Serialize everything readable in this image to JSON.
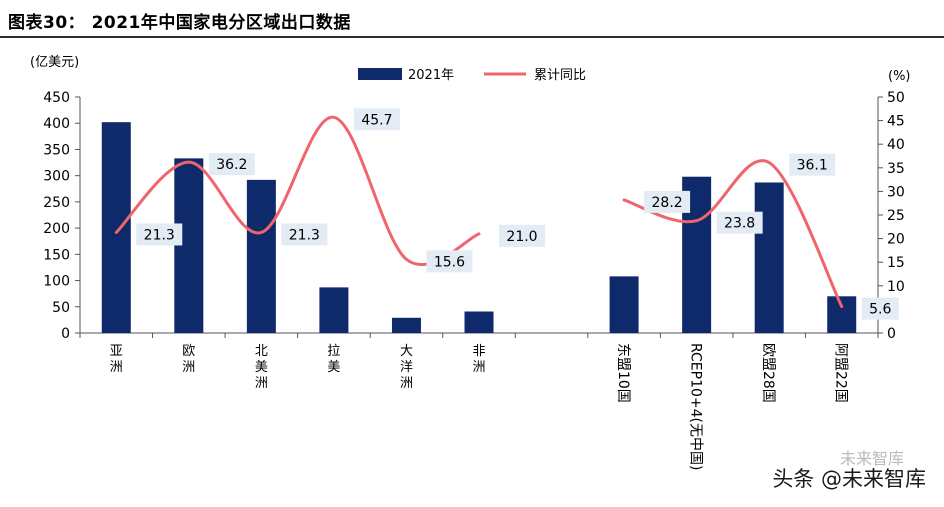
{
  "title": "图表30： 2021年中国家电分区域出口数据",
  "watermark": "头条 @未来智库",
  "watermark_faint": "未来智库",
  "chart_data": {
    "type": "bar",
    "y_left_label": "(亿美元)",
    "y_right_label": "(%)",
    "y_left_range": [
      0,
      450
    ],
    "y_left_ticks": [
      0,
      50,
      100,
      150,
      200,
      250,
      300,
      350,
      400,
      450
    ],
    "y_right_range": [
      0,
      50
    ],
    "y_right_ticks": [
      0,
      5,
      10,
      15,
      20,
      25,
      30,
      35,
      40,
      45,
      50
    ],
    "categories": [
      "亚洲",
      "欧洲",
      "北美洲",
      "拉美",
      "大洋洲",
      "非洲",
      "",
      "东盟10国",
      "RCEP10+4(无中国)",
      "欧盟28国",
      "阿盟22国"
    ],
    "category_vertical": [
      true,
      true,
      true,
      true,
      true,
      true,
      true,
      false,
      false,
      false,
      false
    ],
    "series": [
      {
        "name": "2021年",
        "type": "bar",
        "axis": "left",
        "color": "#0f2a6b",
        "values": [
          402,
          333,
          292,
          87,
          29,
          41,
          null,
          108,
          298,
          287,
          70
        ]
      },
      {
        "name": "累计同比",
        "type": "line",
        "axis": "right",
        "color": "#f0646c",
        "values": [
          21.3,
          36.2,
          21.3,
          45.7,
          15.6,
          21.0,
          null,
          28.2,
          23.8,
          36.1,
          5.6
        ],
        "labels": [
          "21.3",
          "36.2",
          "21.3",
          "45.7",
          "15.6",
          "21.0",
          null,
          "28.2",
          "23.8",
          "36.1",
          "5.6"
        ]
      }
    ]
  }
}
